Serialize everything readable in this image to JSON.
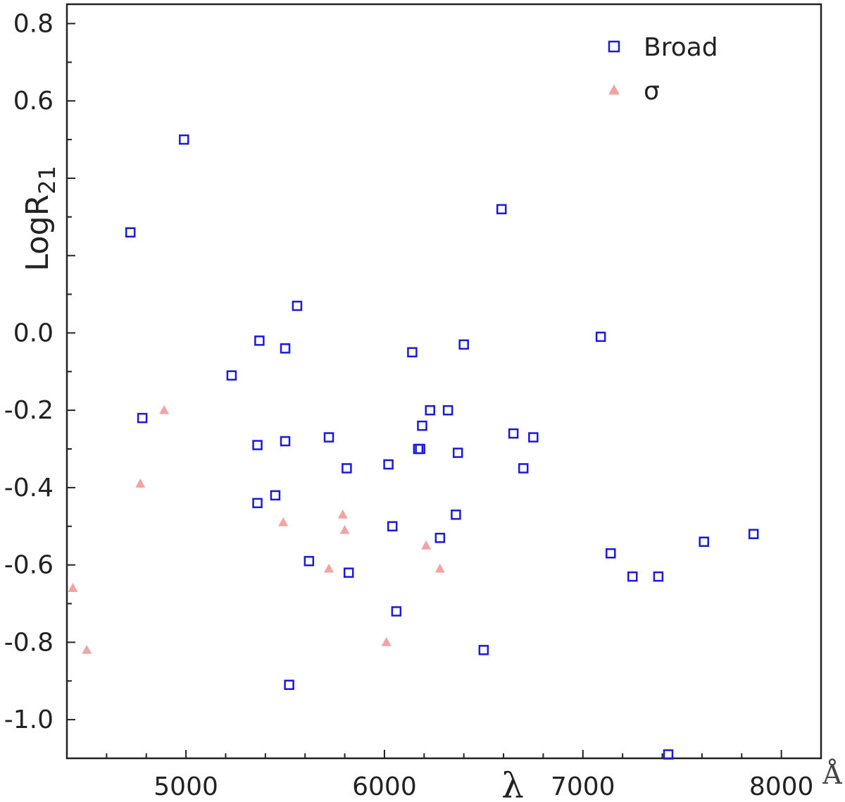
{
  "chart_data": {
    "type": "scatter",
    "xlabel": "λ",
    "x_unit": "Å",
    "ylabel_main": "LogR",
    "ylabel_sub": "21",
    "xlim": [
      4400,
      8200
    ],
    "ylim": [
      -1.1,
      0.85
    ],
    "xticks": [
      5000,
      6000,
      7000,
      8000
    ],
    "yticks": [
      0.8,
      0.6,
      0.0,
      -0.2,
      -0.4,
      -0.6,
      -0.8,
      -1.0
    ],
    "ytick_labels": [
      "0.8",
      "0.6",
      "0.0",
      "-0.2",
      "-0.4",
      "-0.6",
      "-0.8",
      "-1.0"
    ],
    "grid": false,
    "legend_position": "top-right",
    "series": [
      {
        "name": "Broad",
        "marker": "open-square",
        "color": "#1a1adc",
        "points": [
          [
            4990,
            0.5
          ],
          [
            4720,
            0.26
          ],
          [
            4780,
            -0.22
          ],
          [
            5230,
            -0.11
          ],
          [
            5370,
            -0.02
          ],
          [
            5500,
            -0.04
          ],
          [
            5560,
            0.07
          ],
          [
            5360,
            -0.29
          ],
          [
            5500,
            -0.28
          ],
          [
            5720,
            -0.27
          ],
          [
            5810,
            -0.35
          ],
          [
            5450,
            -0.42
          ],
          [
            5360,
            -0.44
          ],
          [
            5620,
            -0.59
          ],
          [
            5820,
            -0.62
          ],
          [
            5520,
            -0.91
          ],
          [
            6020,
            -0.34
          ],
          [
            6040,
            -0.5
          ],
          [
            6060,
            -0.72
          ],
          [
            6140,
            -0.05
          ],
          [
            6180,
            -0.3
          ],
          [
            6190,
            -0.24
          ],
          [
            6230,
            -0.2
          ],
          [
            6170,
            -0.3
          ],
          [
            6280,
            -0.53
          ],
          [
            6320,
            -0.2
          ],
          [
            6370,
            -0.31
          ],
          [
            6360,
            -0.47
          ],
          [
            6400,
            -0.03
          ],
          [
            6500,
            -0.82
          ],
          [
            6590,
            0.32
          ],
          [
            6650,
            -0.26
          ],
          [
            6700,
            -0.35
          ],
          [
            6750,
            -0.27
          ],
          [
            7090,
            -0.01
          ],
          [
            7140,
            -0.57
          ],
          [
            7250,
            -0.63
          ],
          [
            7380,
            -0.63
          ],
          [
            7430,
            -1.09
          ],
          [
            7610,
            -0.54
          ],
          [
            7860,
            -0.52
          ]
        ]
      },
      {
        "name": "σ",
        "marker": "filled-triangle",
        "color": "#f4a3a3",
        "points": [
          [
            4430,
            -0.66
          ],
          [
            4500,
            -0.82
          ],
          [
            4770,
            -0.39
          ],
          [
            4890,
            -0.2
          ],
          [
            5490,
            -0.49
          ],
          [
            5720,
            -0.61
          ],
          [
            5790,
            -0.47
          ],
          [
            5800,
            -0.51
          ],
          [
            6010,
            -0.8
          ],
          [
            6210,
            -0.55
          ],
          [
            6280,
            -0.61
          ]
        ]
      }
    ]
  }
}
